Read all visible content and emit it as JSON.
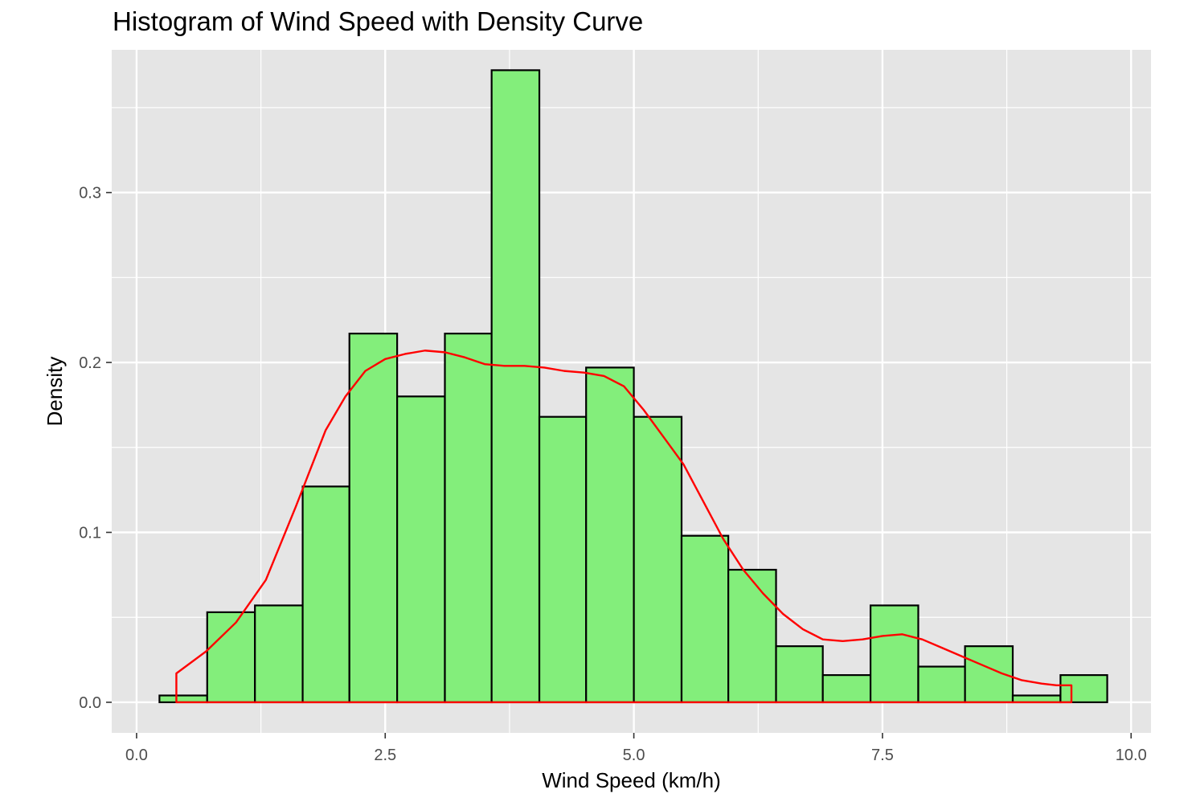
{
  "chart_data": {
    "type": "bar",
    "title": "Histogram of Wind Speed with Density Curve",
    "xlabel": "Wind Speed (km/h)",
    "ylabel": "Density",
    "xlim": [
      -0.25,
      10.2
    ],
    "ylim": [
      -0.018,
      0.384
    ],
    "x_ticks": [
      0.0,
      2.5,
      5.0,
      7.5,
      10.0
    ],
    "x_tick_labels": [
      "0.0",
      "2.5",
      "5.0",
      "7.5",
      "10.0"
    ],
    "y_ticks": [
      0.0,
      0.1,
      0.2,
      0.3
    ],
    "y_tick_labels": [
      "0.0",
      "0.1",
      "0.2",
      "0.3"
    ],
    "grid": true,
    "legend": "none",
    "colors": {
      "panel_background": "#e5e5e5",
      "grid": "#ffffff",
      "bar_fill": "#83ee7b",
      "bar_outline": "#000000",
      "density_curve": "#ff0000"
    },
    "bins": [
      {
        "x0": 0.23,
        "x1": 0.71,
        "density": 0.004
      },
      {
        "x0": 0.71,
        "x1": 1.19,
        "density": 0.053
      },
      {
        "x0": 1.19,
        "x1": 1.67,
        "density": 0.057
      },
      {
        "x0": 1.67,
        "x1": 2.14,
        "density": 0.127
      },
      {
        "x0": 2.14,
        "x1": 2.62,
        "density": 0.217
      },
      {
        "x0": 2.62,
        "x1": 3.1,
        "density": 0.18
      },
      {
        "x0": 3.1,
        "x1": 3.57,
        "density": 0.217
      },
      {
        "x0": 3.57,
        "x1": 4.05,
        "density": 0.372
      },
      {
        "x0": 4.05,
        "x1": 4.52,
        "density": 0.168
      },
      {
        "x0": 4.52,
        "x1": 5.0,
        "density": 0.197
      },
      {
        "x0": 5.0,
        "x1": 5.48,
        "density": 0.168
      },
      {
        "x0": 5.48,
        "x1": 5.95,
        "density": 0.098
      },
      {
        "x0": 5.95,
        "x1": 6.43,
        "density": 0.078
      },
      {
        "x0": 6.43,
        "x1": 6.9,
        "density": 0.033
      },
      {
        "x0": 6.9,
        "x1": 7.38,
        "density": 0.016
      },
      {
        "x0": 7.38,
        "x1": 7.86,
        "density": 0.057
      },
      {
        "x0": 7.86,
        "x1": 8.33,
        "density": 0.021
      },
      {
        "x0": 8.33,
        "x1": 8.81,
        "density": 0.033
      },
      {
        "x0": 8.81,
        "x1": 9.29,
        "density": 0.004
      },
      {
        "x0": 9.29,
        "x1": 9.76,
        "density": 0.016
      }
    ],
    "density_curve": {
      "x": [
        0.4,
        0.7,
        1.0,
        1.3,
        1.6,
        1.9,
        2.1,
        2.3,
        2.5,
        2.7,
        2.9,
        3.1,
        3.3,
        3.5,
        3.7,
        3.9,
        4.1,
        4.3,
        4.5,
        4.7,
        4.9,
        5.1,
        5.3,
        5.5,
        5.7,
        5.9,
        6.1,
        6.3,
        6.5,
        6.7,
        6.9,
        7.1,
        7.3,
        7.5,
        7.7,
        7.9,
        8.1,
        8.3,
        8.5,
        8.7,
        8.9,
        9.1,
        9.25,
        9.4
      ],
      "y": [
        0.017,
        0.03,
        0.047,
        0.072,
        0.115,
        0.16,
        0.18,
        0.195,
        0.202,
        0.205,
        0.207,
        0.206,
        0.203,
        0.199,
        0.198,
        0.198,
        0.197,
        0.195,
        0.194,
        0.192,
        0.186,
        0.172,
        0.156,
        0.14,
        0.118,
        0.096,
        0.078,
        0.064,
        0.052,
        0.043,
        0.037,
        0.036,
        0.037,
        0.039,
        0.04,
        0.037,
        0.032,
        0.027,
        0.022,
        0.017,
        0.013,
        0.011,
        0.01,
        0.01
      ]
    }
  }
}
